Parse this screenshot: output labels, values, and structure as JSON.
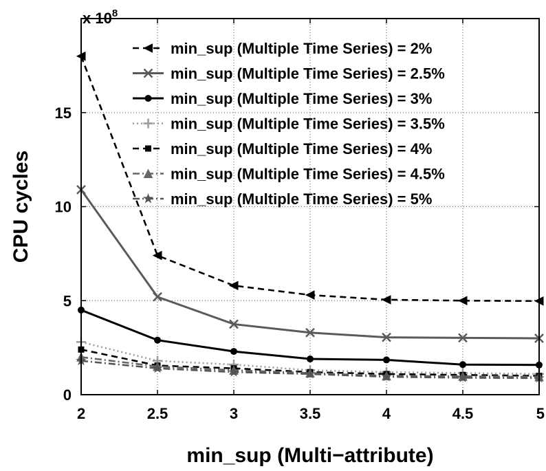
{
  "chart_data": {
    "type": "line",
    "xlabel": "min_sup (Multi−attribute)",
    "ylabel": "CPU cycles",
    "y_multiplier": {
      "base": "x 10",
      "exponent": "8"
    },
    "xlim": [
      2,
      5
    ],
    "ylim": [
      0,
      20
    ],
    "grid": true,
    "legend_position": "top-right",
    "x_ticks": [
      2,
      2.5,
      3,
      3.5,
      4,
      4.5,
      5
    ],
    "x_tick_labels": [
      "2",
      "2.5",
      "3",
      "3.5",
      "4",
      "4.5",
      "5"
    ],
    "y_ticks": [
      0,
      5,
      10,
      15
    ],
    "y_tick_labels": [
      "0",
      "5",
      "10",
      "15"
    ],
    "x": [
      2,
      2.5,
      3,
      3.5,
      4,
      4.5,
      5
    ],
    "series": [
      {
        "name": "min_sup (Multiple Time Series) = 2%",
        "values": [
          18.0,
          7.4,
          5.8,
          5.3,
          5.05,
          5.0,
          4.98
        ],
        "color": "#000000",
        "dash": "dashed",
        "marker": "triangle-left"
      },
      {
        "name": "min_sup (Multiple Time Series) = 2.5%",
        "values": [
          10.9,
          5.2,
          3.75,
          3.3,
          3.05,
          3.02,
          3.0
        ],
        "color": "#5a5a5a",
        "dash": "solid",
        "marker": "x"
      },
      {
        "name": "min_sup (Multiple Time Series) = 3%",
        "values": [
          4.5,
          2.9,
          2.3,
          1.9,
          1.85,
          1.6,
          1.58
        ],
        "color": "#000000",
        "dash": "solid",
        "marker": "circle"
      },
      {
        "name": "min_sup (Multiple Time Series) = 3.5%",
        "values": [
          2.8,
          1.8,
          1.6,
          1.3,
          1.2,
          1.15,
          1.1
        ],
        "color": "#9a9a9a",
        "dash": "dotted",
        "marker": "plus"
      },
      {
        "name": "min_sup (Multiple Time Series) = 4%",
        "values": [
          2.4,
          1.55,
          1.4,
          1.2,
          1.1,
          1.05,
          1.0
        ],
        "color": "#000000",
        "dash": "dashed",
        "marker": "square"
      },
      {
        "name": "min_sup (Multiple Time Series) = 4.5%",
        "values": [
          2.0,
          1.5,
          1.3,
          1.15,
          1.0,
          0.98,
          0.95
        ],
        "color": "#666666",
        "dash": "dashdot",
        "marker": "triangle-up"
      },
      {
        "name": "min_sup (Multiple Time Series) = 5%",
        "values": [
          1.8,
          1.4,
          1.2,
          1.1,
          0.95,
          0.9,
          0.88
        ],
        "color": "#555555",
        "dash": "dashdot",
        "marker": "star"
      }
    ]
  }
}
